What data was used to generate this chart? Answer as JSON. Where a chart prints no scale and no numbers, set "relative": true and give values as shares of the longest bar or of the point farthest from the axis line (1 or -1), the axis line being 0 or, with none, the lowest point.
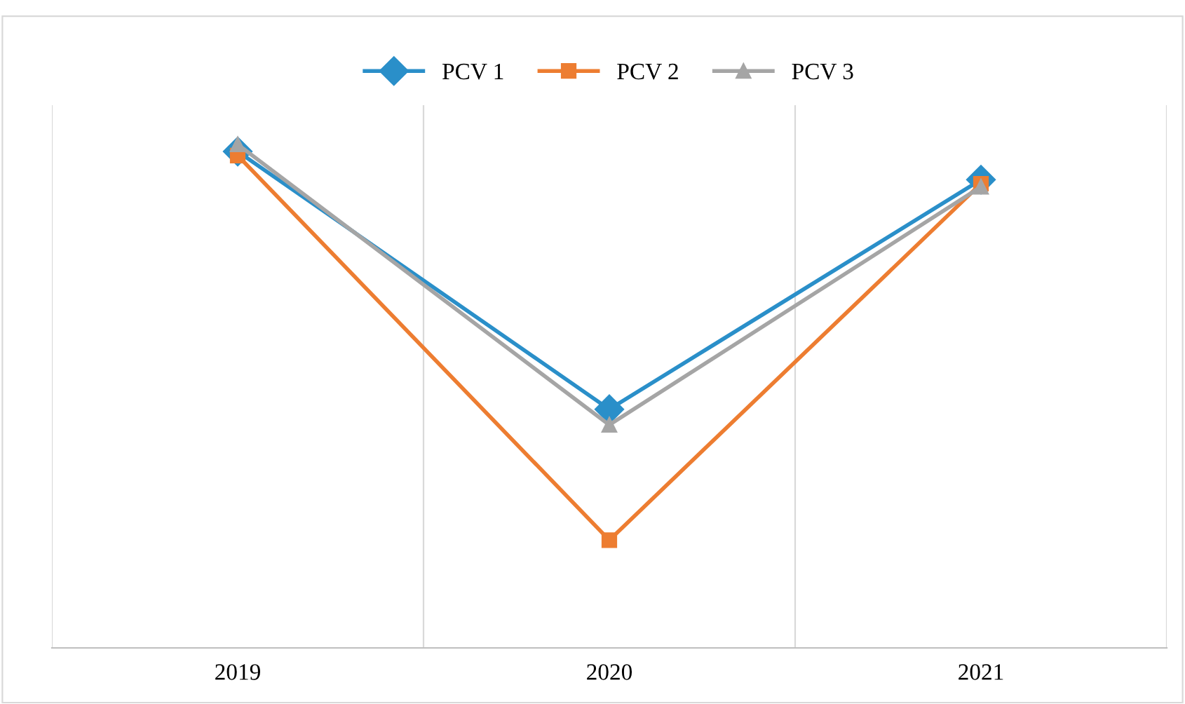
{
  "chart_data": {
    "type": "line",
    "relative": true,
    "categories": [
      "2019",
      "2020",
      "2021"
    ],
    "series": [
      {
        "name": "PCV 1",
        "color": "#2a8fc9",
        "marker": "diamond",
        "values": [
          0.986,
          0.474,
          0.93
        ]
      },
      {
        "name": "PCV 2",
        "color": "#ed7d31",
        "marker": "square",
        "values": [
          0.978,
          0.214,
          0.922
        ]
      },
      {
        "name": "PCV 3",
        "color": "#a5a5a5",
        "marker": "triangle",
        "values": [
          1.0,
          0.443,
          0.916
        ]
      }
    ],
    "grid": "x",
    "legend": "top",
    "line_style": "solid"
  }
}
